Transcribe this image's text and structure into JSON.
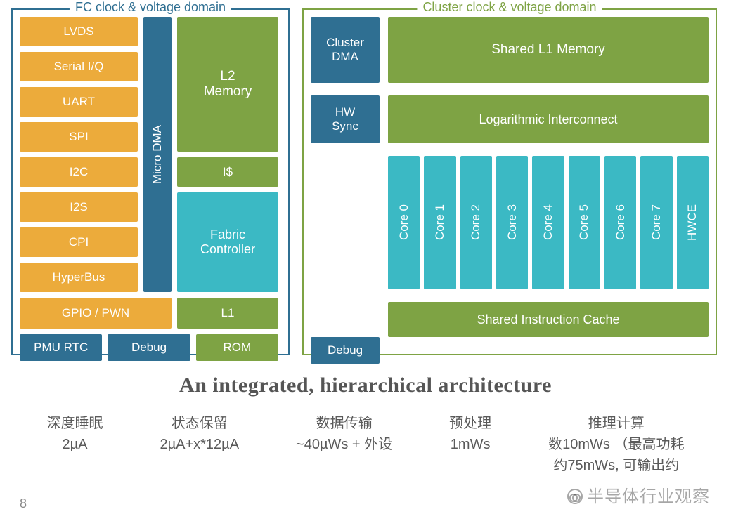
{
  "colors": {
    "orange": "#ecab3b",
    "blue": "#2f6f92",
    "green": "#7ea344",
    "teal": "#3bb9c4",
    "subtitle": "#555555",
    "footer_text": "#5a5a5a"
  },
  "fc": {
    "title": "FC clock & voltage domain",
    "border_color": "#2f6f92",
    "peripherals": [
      "LVDS",
      "Serial I/Q",
      "UART",
      "SPI",
      "I2C",
      "I2S",
      "CPI",
      "HyperBus"
    ],
    "micro_dma": "Micro DMA",
    "l2": "L2\nMemory",
    "idollar": "I$",
    "fabric": "Fabric\nController",
    "gpio": "GPIO / PWN",
    "l1": "L1",
    "pmu": "PMU RTC",
    "debug": "Debug",
    "rom": "ROM"
  },
  "cluster": {
    "title": "Cluster clock & voltage domain",
    "border_color": "#7ea344",
    "dma": "Cluster\nDMA",
    "shared_l1": "Shared L1 Memory",
    "hwsync": "HW\nSync",
    "logint": "Logarithmic Interconnect",
    "cores": [
      "Core 0",
      "Core 1",
      "Core 2",
      "Core 3",
      "Core 4",
      "Core 5",
      "Core 6",
      "Core 7",
      "HWCE"
    ],
    "shared_inst": "Shared Instruction Cache",
    "debug": "Debug"
  },
  "subtitle": "An integrated, hierarchical architecture",
  "footer": [
    {
      "label": "深度睡眠",
      "value": "2µA"
    },
    {
      "label": "状态保留",
      "value": "2µA+x*12µA"
    },
    {
      "label": "数据传输",
      "value": "~40µWs + 外设"
    },
    {
      "label": "预处理",
      "value": "1mWs"
    },
    {
      "label": "推理计算",
      "value": "数10mWs （最高功耗\n约75mWs, 可输出约"
    }
  ],
  "page_number": "8",
  "watermark": "半导体行业观察"
}
